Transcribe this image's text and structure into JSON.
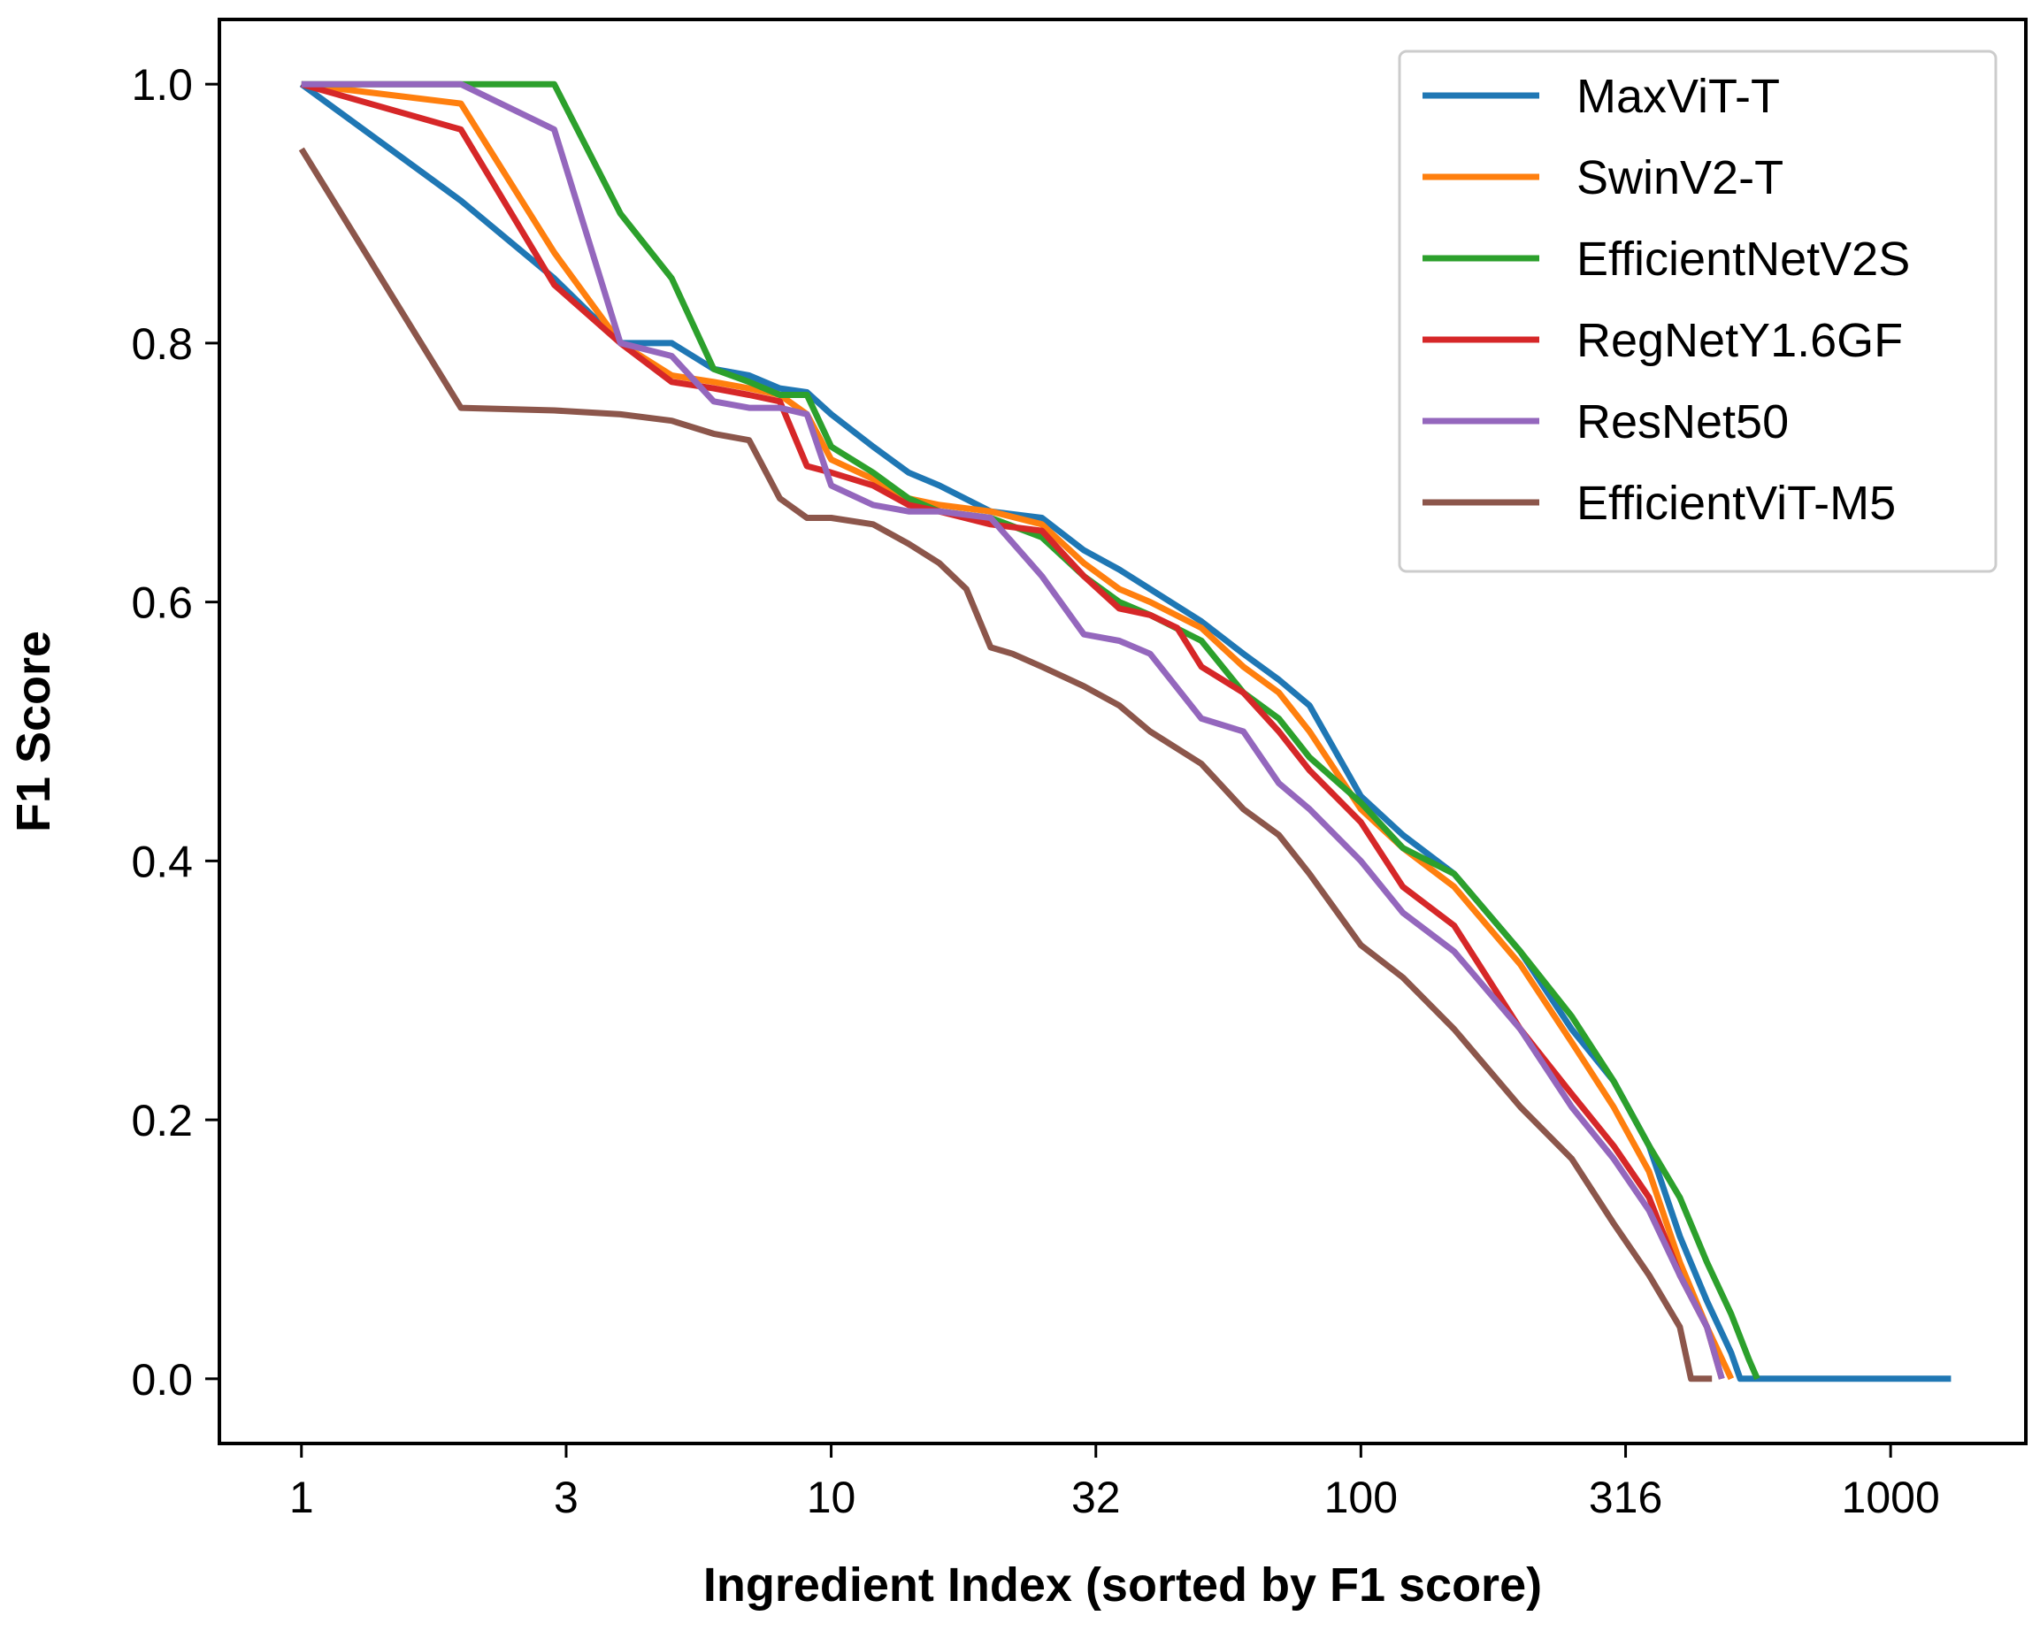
{
  "chart_data": {
    "type": "line",
    "title": "",
    "xlabel": "Ingredient Index (sorted by F1 score)",
    "ylabel": "F1 Score",
    "xscale": "log",
    "xlim": [
      0.7,
      1800
    ],
    "ylim": [
      -0.05,
      1.05
    ],
    "xticks": [
      {
        "value": 1,
        "label": "1"
      },
      {
        "value": 3.16,
        "label": "3"
      },
      {
        "value": 10,
        "label": "10"
      },
      {
        "value": 31.6,
        "label": "32"
      },
      {
        "value": 100,
        "label": "100"
      },
      {
        "value": 316,
        "label": "316"
      },
      {
        "value": 1000,
        "label": "1000"
      }
    ],
    "yticks": [
      {
        "value": 0.0,
        "label": "0.0"
      },
      {
        "value": 0.2,
        "label": "0.2"
      },
      {
        "value": 0.4,
        "label": "0.4"
      },
      {
        "value": 0.6,
        "label": "0.6"
      },
      {
        "value": 0.8,
        "label": "0.8"
      },
      {
        "value": 1.0,
        "label": "1.0"
      }
    ],
    "legend_position": "top-right",
    "series": [
      {
        "name": "MaxViT-T",
        "color": "#1f77b4",
        "points": [
          [
            1,
            1.0
          ],
          [
            2,
            0.91
          ],
          [
            3,
            0.85
          ],
          [
            4,
            0.8
          ],
          [
            5,
            0.8
          ],
          [
            6,
            0.78
          ],
          [
            7,
            0.775
          ],
          [
            8,
            0.765
          ],
          [
            9,
            0.762
          ],
          [
            10,
            0.745
          ],
          [
            12,
            0.72
          ],
          [
            14,
            0.7
          ],
          [
            16,
            0.69
          ],
          [
            20,
            0.67
          ],
          [
            25,
            0.665
          ],
          [
            30,
            0.64
          ],
          [
            35,
            0.625
          ],
          [
            40,
            0.61
          ],
          [
            50,
            0.585
          ],
          [
            60,
            0.56
          ],
          [
            70,
            0.54
          ],
          [
            80,
            0.52
          ],
          [
            100,
            0.45
          ],
          [
            120,
            0.42
          ],
          [
            150,
            0.39
          ],
          [
            200,
            0.33
          ],
          [
            250,
            0.27
          ],
          [
            300,
            0.23
          ],
          [
            350,
            0.18
          ],
          [
            400,
            0.11
          ],
          [
            450,
            0.06
          ],
          [
            500,
            0.02
          ],
          [
            520,
            0.0
          ],
          [
            1300,
            0.0
          ]
        ]
      },
      {
        "name": "SwinV2-T",
        "color": "#ff7f0e",
        "points": [
          [
            1,
            1.0
          ],
          [
            2,
            0.985
          ],
          [
            3,
            0.87
          ],
          [
            4,
            0.8
          ],
          [
            5,
            0.775
          ],
          [
            6,
            0.77
          ],
          [
            7,
            0.765
          ],
          [
            8,
            0.76
          ],
          [
            9,
            0.745
          ],
          [
            10,
            0.71
          ],
          [
            12,
            0.695
          ],
          [
            14,
            0.68
          ],
          [
            16,
            0.675
          ],
          [
            20,
            0.67
          ],
          [
            25,
            0.66
          ],
          [
            30,
            0.63
          ],
          [
            35,
            0.61
          ],
          [
            40,
            0.6
          ],
          [
            50,
            0.58
          ],
          [
            60,
            0.55
          ],
          [
            70,
            0.53
          ],
          [
            80,
            0.5
          ],
          [
            100,
            0.44
          ],
          [
            120,
            0.41
          ],
          [
            150,
            0.38
          ],
          [
            200,
            0.32
          ],
          [
            250,
            0.26
          ],
          [
            300,
            0.21
          ],
          [
            350,
            0.16
          ],
          [
            400,
            0.09
          ],
          [
            450,
            0.04
          ],
          [
            500,
            0.0
          ]
        ]
      },
      {
        "name": "EfficientNetV2S",
        "color": "#2ca02c",
        "points": [
          [
            1,
            1.0
          ],
          [
            2,
            1.0
          ],
          [
            3,
            1.0
          ],
          [
            4,
            0.9
          ],
          [
            5,
            0.85
          ],
          [
            6,
            0.78
          ],
          [
            7,
            0.77
          ],
          [
            8,
            0.76
          ],
          [
            9,
            0.76
          ],
          [
            10,
            0.72
          ],
          [
            12,
            0.7
          ],
          [
            14,
            0.68
          ],
          [
            16,
            0.67
          ],
          [
            20,
            0.665
          ],
          [
            25,
            0.65
          ],
          [
            30,
            0.62
          ],
          [
            35,
            0.6
          ],
          [
            40,
            0.59
          ],
          [
            50,
            0.57
          ],
          [
            60,
            0.53
          ],
          [
            70,
            0.51
          ],
          [
            80,
            0.48
          ],
          [
            100,
            0.445
          ],
          [
            120,
            0.41
          ],
          [
            150,
            0.39
          ],
          [
            200,
            0.33
          ],
          [
            250,
            0.28
          ],
          [
            300,
            0.23
          ],
          [
            350,
            0.18
          ],
          [
            400,
            0.14
          ],
          [
            450,
            0.09
          ],
          [
            500,
            0.05
          ],
          [
            540,
            0.015
          ],
          [
            560,
            0.0
          ]
        ]
      },
      {
        "name": "RegNetY1.6GF",
        "color": "#d62728",
        "points": [
          [
            1,
            1.0
          ],
          [
            2,
            0.965
          ],
          [
            3,
            0.845
          ],
          [
            4,
            0.8
          ],
          [
            5,
            0.77
          ],
          [
            6,
            0.765
          ],
          [
            7,
            0.76
          ],
          [
            8,
            0.755
          ],
          [
            9,
            0.705
          ],
          [
            10,
            0.7
          ],
          [
            12,
            0.69
          ],
          [
            14,
            0.675
          ],
          [
            16,
            0.67
          ],
          [
            20,
            0.66
          ],
          [
            25,
            0.655
          ],
          [
            30,
            0.62
          ],
          [
            35,
            0.595
          ],
          [
            40,
            0.59
          ],
          [
            45,
            0.58
          ],
          [
            50,
            0.55
          ],
          [
            60,
            0.53
          ],
          [
            70,
            0.5
          ],
          [
            80,
            0.47
          ],
          [
            100,
            0.43
          ],
          [
            120,
            0.38
          ],
          [
            150,
            0.35
          ],
          [
            200,
            0.27
          ],
          [
            250,
            0.22
          ],
          [
            300,
            0.18
          ],
          [
            350,
            0.14
          ],
          [
            400,
            0.08
          ],
          [
            450,
            0.04
          ],
          [
            480,
            0.0
          ]
        ]
      },
      {
        "name": "ResNet50",
        "color": "#9467bd",
        "points": [
          [
            1,
            1.0
          ],
          [
            2,
            1.0
          ],
          [
            3,
            0.965
          ],
          [
            4,
            0.8
          ],
          [
            5,
            0.79
          ],
          [
            6,
            0.755
          ],
          [
            7,
            0.75
          ],
          [
            8,
            0.75
          ],
          [
            9,
            0.745
          ],
          [
            10,
            0.69
          ],
          [
            12,
            0.675
          ],
          [
            14,
            0.67
          ],
          [
            16,
            0.67
          ],
          [
            20,
            0.665
          ],
          [
            25,
            0.62
          ],
          [
            30,
            0.575
          ],
          [
            35,
            0.57
          ],
          [
            40,
            0.56
          ],
          [
            50,
            0.51
          ],
          [
            60,
            0.5
          ],
          [
            70,
            0.46
          ],
          [
            80,
            0.44
          ],
          [
            100,
            0.4
          ],
          [
            120,
            0.36
          ],
          [
            150,
            0.33
          ],
          [
            200,
            0.27
          ],
          [
            250,
            0.21
          ],
          [
            300,
            0.17
          ],
          [
            350,
            0.13
          ],
          [
            400,
            0.08
          ],
          [
            450,
            0.04
          ],
          [
            480,
            0.0
          ]
        ]
      },
      {
        "name": "EfficientViT-M5",
        "color": "#8c564b",
        "points": [
          [
            1,
            0.95
          ],
          [
            2,
            0.75
          ],
          [
            3,
            0.748
          ],
          [
            4,
            0.745
          ],
          [
            5,
            0.74
          ],
          [
            6,
            0.73
          ],
          [
            7,
            0.725
          ],
          [
            8,
            0.68
          ],
          [
            9,
            0.665
          ],
          [
            10,
            0.665
          ],
          [
            12,
            0.66
          ],
          [
            14,
            0.645
          ],
          [
            16,
            0.63
          ],
          [
            18,
            0.61
          ],
          [
            20,
            0.565
          ],
          [
            22,
            0.56
          ],
          [
            25,
            0.55
          ],
          [
            30,
            0.535
          ],
          [
            35,
            0.52
          ],
          [
            40,
            0.5
          ],
          [
            50,
            0.475
          ],
          [
            60,
            0.44
          ],
          [
            70,
            0.42
          ],
          [
            80,
            0.39
          ],
          [
            100,
            0.335
          ],
          [
            120,
            0.31
          ],
          [
            150,
            0.27
          ],
          [
            200,
            0.21
          ],
          [
            250,
            0.17
          ],
          [
            300,
            0.12
          ],
          [
            350,
            0.08
          ],
          [
            400,
            0.04
          ],
          [
            420,
            0.0
          ],
          [
            460,
            0.0
          ]
        ]
      }
    ]
  }
}
